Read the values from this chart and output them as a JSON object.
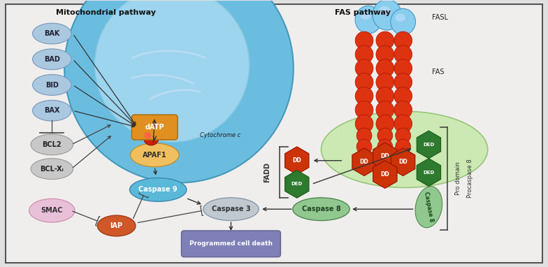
{
  "bg_color": "#e8e8e8",
  "fig_bg": "#e0e0e0",
  "mitochondrial_title": "Mitochondrial pathway",
  "fas_title": "FAS pathway",
  "cytochrome_label": "Cytochrome c",
  "fasl_label": "FASL",
  "fas_label": "FAS",
  "fadd_label": "FADD",
  "procaspase8_label": "Procaspase 8",
  "pro_domain_label": "Pro domain",
  "mito_outer_color": "#6bbde0",
  "mito_inner_color": "#9dd4ee",
  "mito_crista_color": "#b8e0f4",
  "node_bak_color": "#aac8e0",
  "node_bcl_color": "#c8c8c8",
  "node_smac_color": "#e8c0d8",
  "node_datp_color": "#e09020",
  "node_apaf1_color": "#f0c060",
  "node_casp9_color": "#5ab8d8",
  "node_iap_color": "#d05828",
  "node_casp3_color": "#c0c8d0",
  "node_casp8_color": "#90c890",
  "node_pcd_color": "#8080b8",
  "dd_color": "#cc3308",
  "ded_color": "#2e7a2e",
  "procasp8_ell_color": "#90c890",
  "cell_mem_color": "#c0e8a0",
  "fasl_color": "#88cce8"
}
